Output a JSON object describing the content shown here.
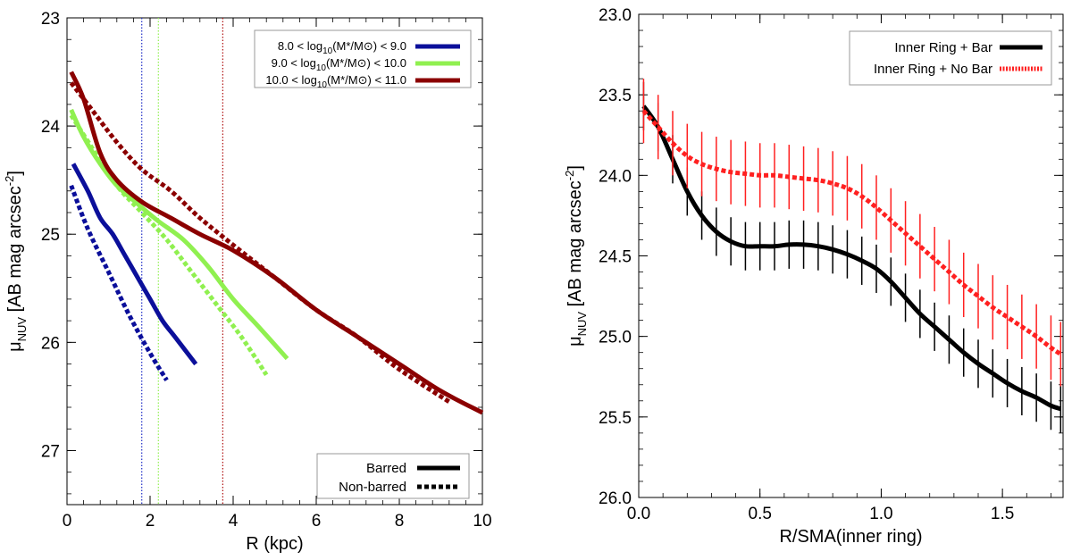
{
  "chart_data": [
    {
      "type": "line",
      "id": "left",
      "xlabel": "R (kpc)",
      "ylabel": "μ",
      "ylabel_sub": "NUV",
      "ylabel_unit": " [AB mag arcsec",
      "ylabel_sup": "-2",
      "ylabel_close": "]",
      "xlim": [
        0,
        10
      ],
      "ylim": [
        27.5,
        23
      ],
      "xticks": [
        0,
        2,
        4,
        6,
        8,
        10
      ],
      "xtick_labels": [
        "0",
        "2",
        "4",
        "6",
        "8",
        "10"
      ],
      "yticks": [
        23,
        24,
        25,
        26,
        27
      ],
      "ytick_labels": [
        "23",
        "24",
        "25",
        "26",
        "27"
      ],
      "mass_legend": [
        {
          "range": "8.0 < log",
          "tail": "(M*/M⊙) < 9.0",
          "sub": "10",
          "color": "#0b0f9a"
        },
        {
          "range": "9.0 < log",
          "tail": "(M*/M⊙) < 10.0",
          "sub": "10",
          "color": "#90f050"
        },
        {
          "range": "10.0 < log",
          "tail": "(M*/M⊙) < 11.0",
          "sub": "10",
          "color": "#8b0000"
        }
      ],
      "style_legend": [
        {
          "label": "Barred",
          "style": "solid"
        },
        {
          "label": "Non-barred",
          "style": "dotted"
        }
      ],
      "vlines": [
        {
          "x": 1.8,
          "color": "#2230c8"
        },
        {
          "x": 2.2,
          "color": "#90f050"
        },
        {
          "x": 3.75,
          "color": "#b01010"
        }
      ],
      "series": [
        {
          "name": "low mass barred",
          "color": "#0b0f9a",
          "style": "solid",
          "x": [
            0.15,
            0.5,
            0.8,
            1.1,
            1.4,
            1.7,
            2.0,
            2.3,
            2.6,
            2.9,
            3.1
          ],
          "y": [
            24.35,
            24.6,
            24.85,
            25.0,
            25.2,
            25.4,
            25.6,
            25.8,
            25.95,
            26.1,
            26.2
          ]
        },
        {
          "name": "low mass non-barred",
          "color": "#0b0f9a",
          "style": "dotted",
          "x": [
            0.1,
            0.5,
            1.0,
            1.5,
            2.0,
            2.4
          ],
          "y": [
            24.55,
            24.95,
            25.35,
            25.75,
            26.1,
            26.35
          ]
        },
        {
          "name": "mid mass barred",
          "color": "#90f050",
          "style": "solid",
          "x": [
            0.1,
            0.4,
            0.8,
            1.2,
            1.7,
            2.2,
            2.8,
            3.4,
            4.0,
            4.6,
            5.3
          ],
          "y": [
            23.85,
            24.1,
            24.35,
            24.55,
            24.72,
            24.88,
            25.05,
            25.3,
            25.6,
            25.85,
            26.15
          ]
        },
        {
          "name": "mid mass non-barred",
          "color": "#90f050",
          "style": "dotted",
          "x": [
            0.1,
            0.6,
            1.2,
            1.8,
            2.4,
            3.0,
            3.6,
            4.2,
            4.8
          ],
          "y": [
            23.9,
            24.2,
            24.55,
            24.8,
            25.05,
            25.35,
            25.65,
            25.95,
            26.3
          ]
        },
        {
          "name": "high mass barred",
          "color": "#8b0000",
          "style": "solid",
          "x": [
            0.1,
            0.4,
            0.8,
            1.2,
            1.8,
            2.5,
            3.2,
            4.0,
            5.0,
            6.0,
            7.0,
            8.0,
            9.0,
            10.0
          ],
          "y": [
            23.5,
            23.75,
            24.25,
            24.5,
            24.7,
            24.85,
            25.0,
            25.15,
            25.4,
            25.7,
            25.95,
            26.2,
            26.45,
            26.65
          ]
        },
        {
          "name": "high mass non-barred",
          "color": "#8b0000",
          "style": "dotted",
          "x": [
            0.1,
            0.6,
            1.2,
            1.8,
            2.5,
            3.2,
            4.0,
            5.0,
            6.0,
            7.0,
            8.0,
            9.2
          ],
          "y": [
            23.6,
            23.85,
            24.15,
            24.4,
            24.6,
            24.85,
            25.1,
            25.4,
            25.7,
            25.95,
            26.25,
            26.55
          ]
        }
      ]
    },
    {
      "type": "line",
      "id": "right",
      "xlabel": "R/SMA(inner ring)",
      "ylabel": "μ",
      "ylabel_sub": "NUV",
      "ylabel_unit": " [AB mag arcsec",
      "ylabel_sup": "-2",
      "ylabel_close": "]",
      "xlim": [
        0,
        1.75
      ],
      "ylim": [
        26,
        23
      ],
      "xticks": [
        0.0,
        0.5,
        1.0,
        1.5
      ],
      "xtick_labels": [
        "0.0",
        "0.5",
        "1.0",
        "1.5"
      ],
      "yticks": [
        23.0,
        23.5,
        24.0,
        24.5,
        25.0,
        25.5,
        26.0
      ],
      "ytick_labels": [
        "23.0",
        "23.5",
        "24.0",
        "24.5",
        "25.0",
        "25.5",
        "26.0"
      ],
      "legend": [
        {
          "label": "Inner Ring + Bar",
          "color": "#000000",
          "style": "solid"
        },
        {
          "label": "Inner Ring + No Bar",
          "color": "#ff2020",
          "style": "dotted"
        }
      ],
      "series": [
        {
          "name": "Inner Ring + Bar",
          "color": "#000000",
          "style": "solid",
          "err": 0.15,
          "x": [
            0.02,
            0.08,
            0.14,
            0.2,
            0.26,
            0.32,
            0.38,
            0.44,
            0.5,
            0.56,
            0.62,
            0.68,
            0.74,
            0.8,
            0.86,
            0.92,
            0.98,
            1.04,
            1.1,
            1.16,
            1.22,
            1.28,
            1.34,
            1.4,
            1.46,
            1.52,
            1.58,
            1.64,
            1.7,
            1.74
          ],
          "y": [
            23.57,
            23.7,
            23.9,
            24.1,
            24.25,
            24.35,
            24.41,
            24.44,
            24.44,
            24.44,
            24.43,
            24.43,
            24.44,
            24.46,
            24.49,
            24.53,
            24.58,
            24.66,
            24.76,
            24.86,
            24.94,
            25.02,
            25.1,
            25.17,
            25.23,
            25.29,
            25.34,
            25.38,
            25.43,
            25.45
          ]
        },
        {
          "name": "Inner Ring + No Bar",
          "color": "#ff2020",
          "style": "dotted",
          "err": 0.2,
          "x": [
            0.02,
            0.08,
            0.14,
            0.2,
            0.26,
            0.32,
            0.38,
            0.44,
            0.5,
            0.56,
            0.62,
            0.68,
            0.74,
            0.8,
            0.86,
            0.92,
            0.98,
            1.04,
            1.1,
            1.16,
            1.22,
            1.28,
            1.34,
            1.4,
            1.46,
            1.52,
            1.58,
            1.64,
            1.7,
            1.74
          ],
          "y": [
            23.6,
            23.7,
            23.8,
            23.88,
            23.93,
            23.96,
            23.98,
            23.99,
            24.0,
            24.0,
            24.01,
            24.02,
            24.03,
            24.05,
            24.08,
            24.13,
            24.2,
            24.28,
            24.36,
            24.44,
            24.52,
            24.6,
            24.68,
            24.75,
            24.82,
            24.88,
            24.94,
            25.0,
            25.07,
            25.11
          ]
        }
      ]
    }
  ]
}
